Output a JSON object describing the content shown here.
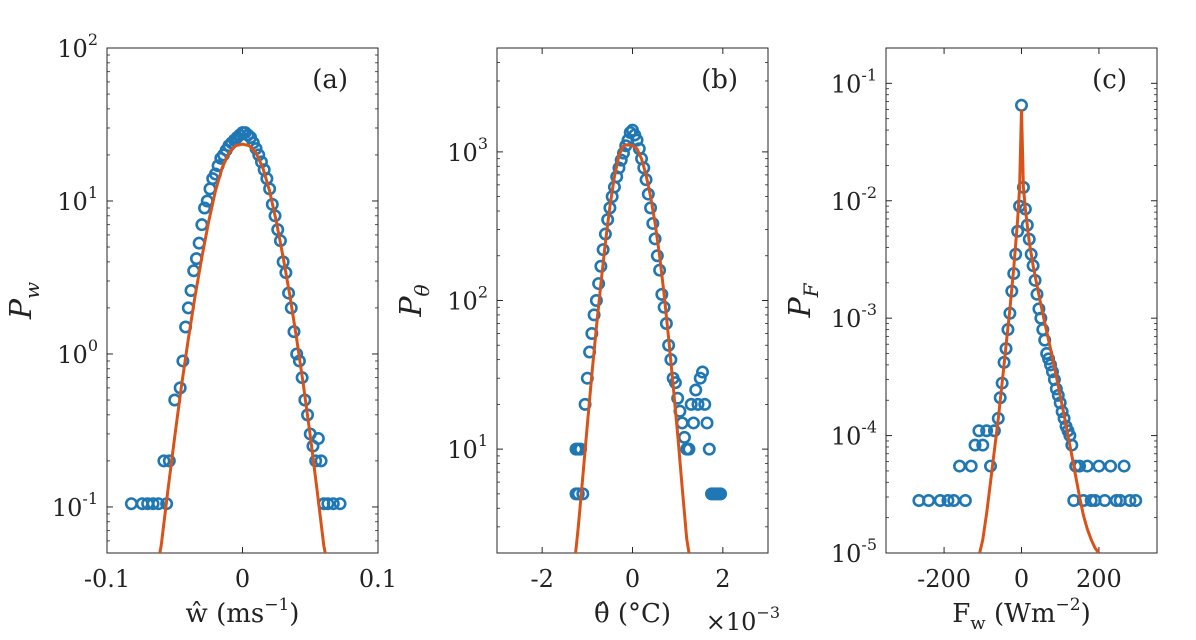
{
  "chart_data": [
    {
      "type": "scatter",
      "panel_label": "(a)",
      "ylabel_main": "P",
      "ylabel_sub": "w",
      "xlabel": "ŵ (ms",
      "xlabel_sup": "−1",
      "xlabel_close": ")",
      "x_multiplier": "",
      "x_multiplier_sup": "",
      "xlim": [
        -0.1,
        0.1
      ],
      "ylim": [
        0.05,
        100
      ],
      "yscale": "log",
      "xticks": [
        -0.1,
        0,
        0.1
      ],
      "xtick_labels": [
        "-0.1",
        "0",
        "0.1"
      ],
      "yticks": [
        0.1,
        1,
        10,
        100
      ],
      "ytick_labels": [
        {
          "base": "10",
          "exp": "-1"
        },
        {
          "base": "10",
          "exp": "0"
        },
        {
          "base": "10",
          "exp": "1"
        },
        {
          "base": "10",
          "exp": "2"
        }
      ],
      "grid": false,
      "series": [
        {
          "kind": "markers",
          "color": "#1f77b4",
          "x": [
            -0.082,
            -0.074,
            -0.07,
            -0.066,
            -0.062,
            -0.058,
            -0.056,
            -0.054,
            -0.05,
            -0.046,
            -0.044,
            -0.042,
            -0.04,
            -0.038,
            -0.036,
            -0.034,
            -0.032,
            -0.03,
            -0.028,
            -0.026,
            -0.024,
            -0.022,
            -0.02,
            -0.018,
            -0.016,
            -0.014,
            -0.012,
            -0.01,
            -0.008,
            -0.006,
            -0.004,
            -0.002,
            0.0,
            0.002,
            0.004,
            0.006,
            0.008,
            0.01,
            0.012,
            0.014,
            0.016,
            0.018,
            0.02,
            0.022,
            0.024,
            0.026,
            0.028,
            0.03,
            0.032,
            0.034,
            0.036,
            0.038,
            0.04,
            0.042,
            0.044,
            0.046,
            0.048,
            0.05,
            0.052,
            0.054,
            0.056,
            0.058,
            0.06,
            0.063,
            0.067,
            0.072
          ],
          "y": [
            0.105,
            0.105,
            0.105,
            0.105,
            0.105,
            0.2,
            0.105,
            0.2,
            0.5,
            0.6,
            0.9,
            1.5,
            2.0,
            2.6,
            3.5,
            4.2,
            5.3,
            7.0,
            9.0,
            10.0,
            12.0,
            14.0,
            15.0,
            17.0,
            19.0,
            20.0,
            21.5,
            23.0,
            24.0,
            25.0,
            26.0,
            27.0,
            28.0,
            28.0,
            27.0,
            26.0,
            24.0,
            22.0,
            20.0,
            18.0,
            16.0,
            14.0,
            12.0,
            9.5,
            8.0,
            6.5,
            5.5,
            4.0,
            3.4,
            2.5,
            2.0,
            1.4,
            1.0,
            0.9,
            0.7,
            0.5,
            0.4,
            0.3,
            0.25,
            0.2,
            0.28,
            0.2,
            0.105,
            0.105,
            0.105,
            0.105
          ]
        },
        {
          "kind": "line",
          "color": "#d95319",
          "x": [
            -0.061,
            -0.06,
            -0.055,
            -0.05,
            -0.045,
            -0.04,
            -0.035,
            -0.03,
            -0.025,
            -0.02,
            -0.015,
            -0.01,
            -0.005,
            0.0,
            0.005,
            0.01,
            0.015,
            0.02,
            0.025,
            0.03,
            0.035,
            0.04,
            0.045,
            0.05,
            0.055,
            0.06,
            0.061
          ],
          "y": [
            0.05,
            0.056,
            0.13,
            0.29,
            0.62,
            1.25,
            2.4,
            4.3,
            7.3,
            11.6,
            16.5,
            20.6,
            23.0,
            23.5,
            23.0,
            20.6,
            16.5,
            11.6,
            7.3,
            4.3,
            2.4,
            1.25,
            0.62,
            0.29,
            0.13,
            0.056,
            0.05
          ]
        }
      ]
    },
    {
      "type": "scatter",
      "panel_label": "(b)",
      "ylabel_main": "P",
      "ylabel_sub": "θ",
      "xlabel": "θ̂ (°C)",
      "xlabel_sup": "",
      "xlabel_close": "",
      "x_multiplier": "×10",
      "x_multiplier_sup": "−3",
      "xlim": [
        -3,
        3
      ],
      "ylim": [
        2,
        5000
      ],
      "yscale": "log",
      "xticks": [
        -2,
        0,
        2
      ],
      "xtick_labels": [
        "-2",
        "0",
        "2"
      ],
      "yticks": [
        10,
        100,
        1000
      ],
      "ytick_labels": [
        {
          "base": "10",
          "exp": "1"
        },
        {
          "base": "10",
          "exp": "2"
        },
        {
          "base": "10",
          "exp": "3"
        }
      ],
      "grid": false,
      "series": [
        {
          "kind": "markers",
          "color": "#1f77b4",
          "x": [
            -1.25,
            -1.2,
            -1.15,
            -1.25,
            -1.2,
            -1.1,
            -1.05,
            -1.0,
            -0.95,
            -0.9,
            -0.85,
            -0.8,
            -0.75,
            -0.7,
            -0.65,
            -0.6,
            -0.55,
            -0.5,
            -0.45,
            -0.4,
            -0.35,
            -0.3,
            -0.25,
            -0.2,
            -0.15,
            -0.1,
            -0.05,
            0.0,
            0.05,
            0.1,
            0.15,
            0.2,
            0.25,
            0.3,
            0.35,
            0.4,
            0.45,
            0.5,
            0.55,
            0.6,
            0.65,
            0.7,
            0.75,
            0.8,
            0.85,
            0.9,
            0.95,
            1.0,
            1.05,
            1.1,
            1.15,
            1.2,
            1.25,
            1.3,
            1.35,
            1.4,
            1.45,
            1.5,
            1.55,
            1.6,
            1.65,
            1.7,
            1.75,
            1.8,
            1.85,
            1.9,
            1.95
          ],
          "y": [
            10,
            10,
            10,
            5,
            5,
            5,
            20,
            30,
            45,
            60,
            80,
            100,
            130,
            170,
            220,
            280,
            350,
            420,
            500,
            580,
            680,
            780,
            880,
            980,
            1100,
            1200,
            1350,
            1400,
            1300,
            1200,
            1050,
            900,
            780,
            650,
            520,
            420,
            330,
            260,
            200,
            160,
            110,
            90,
            70,
            50,
            40,
            30,
            28,
            22,
            18,
            15,
            12,
            10,
            10,
            20,
            15,
            25,
            20,
            30,
            33,
            20,
            15,
            10,
            5,
            5,
            5,
            5,
            5
          ]
        },
        {
          "kind": "line",
          "color": "#d95319",
          "x": [
            -1.26,
            -1.2,
            -1.1,
            -1.0,
            -0.9,
            -0.8,
            -0.7,
            -0.6,
            -0.5,
            -0.4,
            -0.3,
            -0.2,
            -0.1,
            0.0,
            0.1,
            0.2,
            0.3,
            0.4,
            0.5,
            0.6,
            0.7,
            0.8,
            0.9,
            1.0,
            1.1,
            1.2,
            1.25
          ],
          "y": [
            2.0,
            3.0,
            6.5,
            14.5,
            32,
            66,
            130,
            245,
            430,
            680,
            950,
            1100,
            1120,
            1100,
            1050,
            900,
            700,
            500,
            330,
            200,
            110,
            56,
            27,
            12.5,
            5.5,
            2.5,
            2.0
          ]
        }
      ]
    },
    {
      "type": "scatter",
      "panel_label": "(c)",
      "ylabel_main": "P",
      "ylabel_sub": "F",
      "xlabel": "F",
      "xlabel_sub": "w",
      "xlabel_rest": " (Wm",
      "xlabel_sup": "−2",
      "xlabel_close": ")",
      "x_multiplier": "",
      "x_multiplier_sup": "",
      "xlim": [
        -350,
        350
      ],
      "ylim": [
        1e-05,
        0.2
      ],
      "yscale": "log",
      "xticks": [
        -200,
        0,
        200
      ],
      "xtick_labels": [
        "-200",
        "0",
        "200"
      ],
      "yticks": [
        1e-05,
        0.0001,
        0.001,
        0.01,
        0.1
      ],
      "ytick_labels": [
        {
          "base": "10",
          "exp": "-5"
        },
        {
          "base": "10",
          "exp": "-4"
        },
        {
          "base": "10",
          "exp": "-3"
        },
        {
          "base": "10",
          "exp": "-2"
        },
        {
          "base": "10",
          "exp": "-1"
        }
      ],
      "grid": false,
      "series": [
        {
          "kind": "markers",
          "color": "#1f77b4",
          "x": [
            -265,
            -240,
            -210,
            -190,
            -175,
            -160,
            -145,
            -130,
            -120,
            -110,
            -100,
            -90,
            -80,
            -70,
            -60,
            -55,
            -50,
            -45,
            -40,
            -35,
            -30,
            -25,
            -20,
            -15,
            -10,
            -5,
            0,
            5,
            10,
            15,
            20,
            25,
            30,
            35,
            40,
            45,
            50,
            55,
            60,
            65,
            70,
            75,
            80,
            85,
            90,
            95,
            100,
            105,
            110,
            115,
            120,
            125,
            130,
            135,
            140,
            150,
            160,
            170,
            180,
            190,
            200,
            215,
            230,
            245,
            255,
            265,
            280,
            295
          ],
          "y": [
            2.8e-05,
            2.8e-05,
            2.8e-05,
            2.8e-05,
            2.8e-05,
            5.5e-05,
            2.8e-05,
            5.5e-05,
            8.3e-05,
            0.00011,
            8.3e-05,
            0.00011,
            5.5e-05,
            0.00011,
            0.00014,
            0.00021,
            0.00028,
            0.00042,
            0.00055,
            0.0008,
            0.0011,
            0.0017,
            0.0024,
            0.0035,
            0.0055,
            0.009,
            0.065,
            0.013,
            0.0085,
            0.0062,
            0.0047,
            0.0035,
            0.0028,
            0.0021,
            0.0016,
            0.0012,
            0.001,
            0.0008,
            0.00065,
            0.0005,
            0.00045,
            0.0004,
            0.00035,
            0.0003,
            0.00025,
            0.00022,
            0.00019,
            0.00016,
            0.00014,
            0.00012,
            0.00011,
            0.0001,
            8.3e-05,
            2.8e-05,
            5.5e-05,
            5.5e-05,
            2.8e-05,
            5.5e-05,
            2.8e-05,
            2.8e-05,
            5.5e-05,
            2.8e-05,
            5.5e-05,
            2.8e-05,
            2.8e-05,
            5.5e-05,
            2.8e-05,
            2.8e-05
          ]
        },
        {
          "kind": "line",
          "color": "#d95319",
          "x": [
            -108,
            -100,
            -90,
            -80,
            -70,
            -60,
            -50,
            -40,
            -30,
            -20,
            -10,
            -5,
            0,
            5,
            10,
            20,
            30,
            40,
            50,
            60,
            70,
            80,
            90,
            100,
            110,
            120,
            130,
            140,
            150,
            160,
            170,
            180,
            190,
            200
          ],
          "y": [
            1e-05,
            1.3e-05,
            2.2e-05,
            4e-05,
            7.5e-05,
            0.00014,
            0.00028,
            0.00058,
            0.0012,
            0.0027,
            0.0068,
            0.013,
            0.06,
            0.013,
            0.0085,
            0.0045,
            0.0028,
            0.0019,
            0.0013,
            0.00092,
            0.00065,
            0.00046,
            0.00032,
            0.00022,
            0.00015,
            0.0001,
            6.8e-05,
            4.5e-05,
            3e-05,
            2.1e-05,
            1.6e-05,
            1.3e-05,
            1.1e-05,
            1e-05
          ]
        }
      ]
    }
  ]
}
